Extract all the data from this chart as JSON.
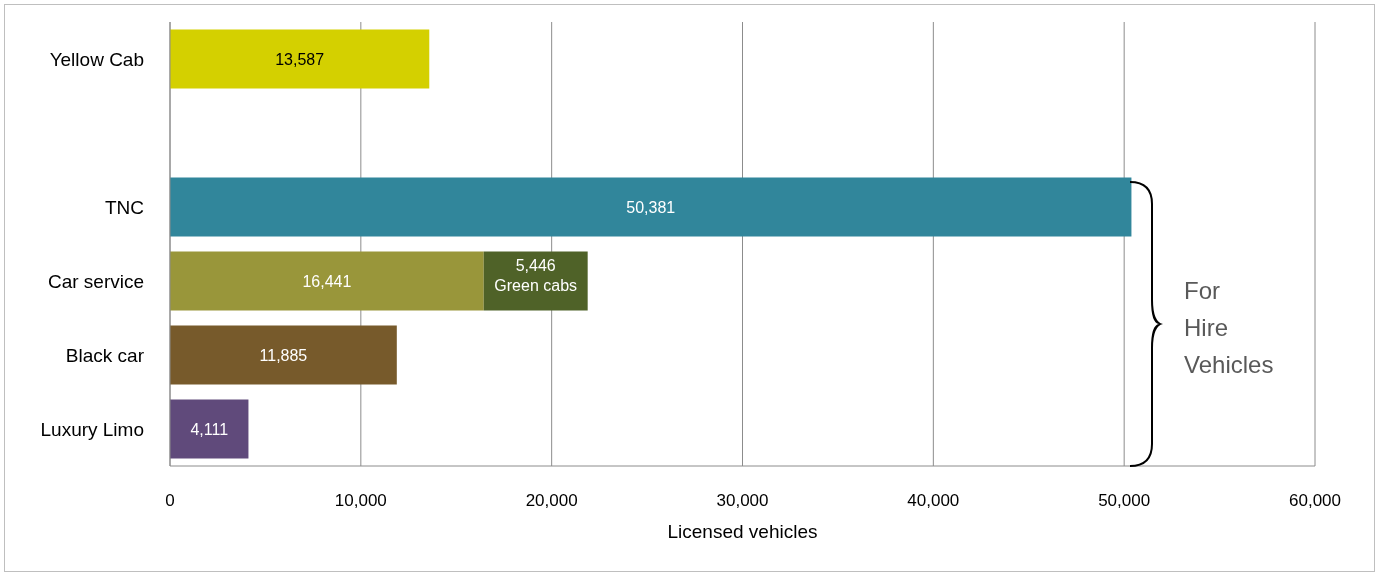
{
  "chart_data": {
    "type": "bar",
    "orientation": "horizontal",
    "stacked": true,
    "xlabel": "Licensed vehicles",
    "categories": [
      "Yellow Cab",
      null,
      "TNC",
      "Car service",
      "Black car",
      "Luxury Limo"
    ],
    "series": [
      {
        "colors": [
          "#d4d000",
          "#ffffff",
          "#31869b",
          "#99963a",
          "#775a2b",
          "#604a7b"
        ],
        "values": [
          13587,
          null,
          50381,
          16441,
          11885,
          4111
        ],
        "value_labels": [
          "13,587",
          null,
          "50,381",
          "16,441",
          "11,885",
          "4,111"
        ]
      },
      {
        "name": "Green cabs",
        "color": "#4f6228",
        "values": [
          null,
          null,
          null,
          5446,
          null,
          null
        ],
        "value_labels": [
          null,
          null,
          null,
          "5,446",
          null,
          null
        ]
      }
    ],
    "xlim": [
      0,
      60000
    ],
    "xticks": [
      {
        "value": 0,
        "label": "0"
      },
      {
        "value": 10000,
        "label": "10,000"
      },
      {
        "value": 20000,
        "label": "20,000"
      },
      {
        "value": 30000,
        "label": "30,000"
      },
      {
        "value": 40000,
        "label": "40,000"
      },
      {
        "value": 50000,
        "label": "50,000"
      },
      {
        "value": 60000,
        "label": "60,000"
      }
    ],
    "grid": "x",
    "legend": false,
    "annotations": [
      "For Hire Vehicles"
    ]
  }
}
